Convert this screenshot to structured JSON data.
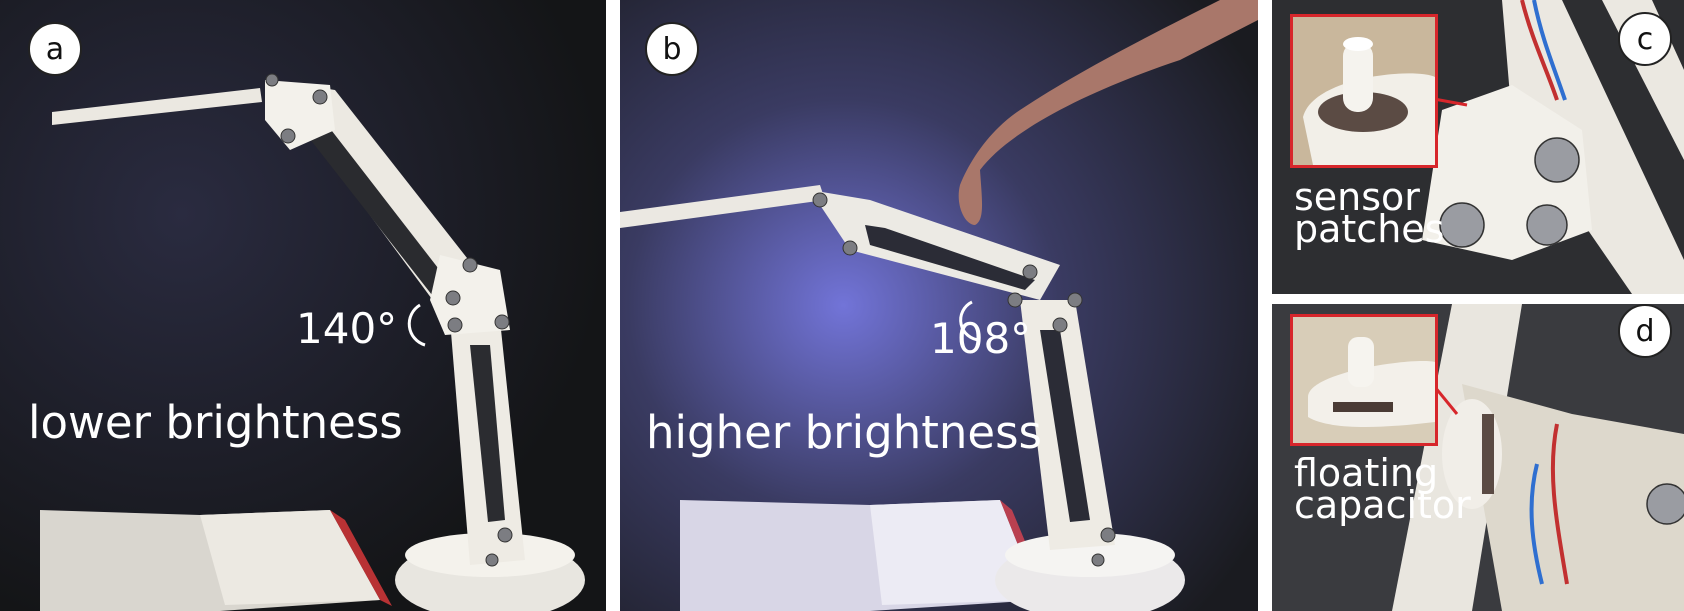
{
  "panels": {
    "a": {
      "label": "a",
      "angle": "140°",
      "caption": "lower brightness"
    },
    "b": {
      "label": "b",
      "angle": "108°",
      "caption": "higher brightness"
    },
    "c": {
      "label": "c",
      "caption_line1": "sensor",
      "caption_line2": "patches"
    },
    "d": {
      "label": "d",
      "caption_line1": "floating",
      "caption_line2": "capacitor"
    }
  },
  "colors": {
    "callout_red": "#d7262b",
    "background_dark": "#1e1f22",
    "lamp_white": "#f0eee8",
    "glow_blue": "#6a6cff"
  }
}
